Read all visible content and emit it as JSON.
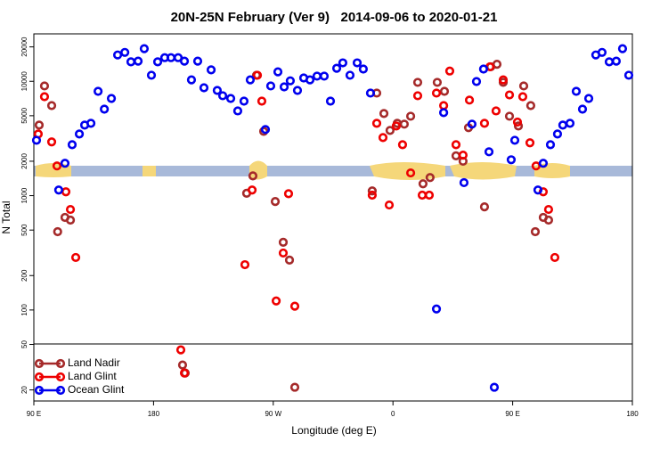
{
  "chart_data": {
    "type": "scatter",
    "title": "20N-25N February (Ver 9)   2014-09-06 to 2020-01-21",
    "xlabel": "Longitude (deg E)",
    "ylabel": "N Total",
    "xlim": [
      90,
      540
    ],
    "xticks": [
      {
        "value": 90,
        "label": "90 E"
      },
      {
        "value": 180,
        "label": "180"
      },
      {
        "value": 270,
        "label": "90 W"
      },
      {
        "value": 360,
        "label": "0"
      },
      {
        "value": 450,
        "label": "90 E"
      },
      {
        "value": 540,
        "label": "180"
      }
    ],
    "ylim": [
      16,
      26000
    ],
    "yscale": "log",
    "yticks": [
      20,
      50,
      100,
      200,
      500,
      1000,
      2000,
      5000,
      10000,
      20000
    ],
    "legend": "lower left",
    "series": [
      {
        "name": "Land Nadir",
        "color": "#a52a2a",
        "x": [
          94,
          98,
          103.4,
          107.9,
          113.4,
          117.5,
          201.8,
          203.8,
          250,
          254.7,
          257.4,
          262.8,
          271.5,
          277.5,
          282.2,
          286.2,
          344.4,
          347.8,
          353.2,
          357.8,
          363.2,
          368.5,
          373.3,
          378.6,
          382.6,
          387.9,
          393.3,
          398.7,
          407.4,
          412.7,
          416.8,
          428.8,
          433.5,
          438.2,
          442.9,
          447.6,
          454.3,
          458.3,
          463.6,
          467,
          473,
          477
        ],
        "values": [
          4140,
          9110,
          6130,
          484,
          645,
          611,
          33,
          28.1,
          1050,
          1490,
          11300,
          3650,
          889,
          391,
          273,
          21.1,
          1100,
          7890,
          5230,
          3720,
          4290,
          4220,
          4950,
          9790,
          1270,
          1440,
          9790,
          8170,
          2230,
          2000,
          3930,
          798,
          13400,
          14100,
          9790,
          4950,
          4070,
          9110,
          6130,
          484,
          645,
          611
        ]
      },
      {
        "name": "Land Glint",
        "color": "#ee0000",
        "x": [
          93.3,
          98,
          103.4,
          107.4,
          114.1,
          117.5,
          121.5,
          200.5,
          203.2,
          248.7,
          254.1,
          258.1,
          261.4,
          272.2,
          277.5,
          281.5,
          286.2,
          344.4,
          347.8,
          352.5,
          357.2,
          362.5,
          367.2,
          373.3,
          378.6,
          382,
          387.3,
          392.7,
          398.1,
          402.7,
          407.4,
          412.7,
          417.5,
          428.8,
          432.9,
          437.5,
          442.9,
          447.6,
          453.6,
          457.6,
          463,
          467.6,
          473,
          477,
          481.7
        ],
        "values": [
          3460,
          7340,
          2950,
          1820,
          1080,
          757,
          288,
          44.8,
          28.1,
          249,
          1120,
          11300,
          6710,
          120,
          315,
          1040,
          108,
          1010,
          4290,
          3220,
          828,
          4070,
          2790,
          1580,
          7480,
          1010,
          1010,
          7890,
          6130,
          12300,
          2790,
          2260,
          6850,
          4290,
          13400,
          5510,
          10300,
          7600,
          4400,
          7340,
          2900,
          1820,
          1080,
          757,
          288
        ]
      },
      {
        "name": "Ocean Glint",
        "color": "#0000ee",
        "x": [
          92,
          113.4,
          108.7,
          118.8,
          124.2,
          128.2,
          132.9,
          138.3,
          143,
          148.3,
          153,
          158.4,
          163,
          168.4,
          173,
          178.4,
          183.1,
          188.4,
          193.1,
          198.5,
          203.2,
          208.5,
          213.2,
          217.9,
          223.3,
          227.9,
          232,
          238,
          243.3,
          248,
          252.7,
          264.1,
          268.1,
          273.5,
          278.2,
          282.8,
          288.2,
          292.9,
          297.6,
          302.9,
          308.3,
          313,
          317.7,
          322.3,
          327.7,
          333.1,
          337.7,
          343.1,
          392.7,
          398.1,
          413.4,
          419.4,
          422.8,
          428.1,
          432.2,
          436.2,
          448.9,
          451.6,
          473,
          469,
          478.4,
          483.7,
          487.7,
          493.1,
          497.8,
          502.5,
          507.2,
          512.5,
          517.2,
          522.6,
          527.9,
          532.6,
          537.3
        ],
        "values": [
          3050,
          1920,
          1120,
          2790,
          3460,
          4140,
          4290,
          8170,
          5710,
          7080,
          17000,
          17900,
          14800,
          15000,
          19300,
          11300,
          14800,
          16100,
          16100,
          16100,
          15000,
          10300,
          15000,
          8780,
          12600,
          8320,
          7480,
          7080,
          5510,
          6710,
          10300,
          3790,
          9110,
          12100,
          8940,
          10100,
          8320,
          10700,
          10300,
          11100,
          11100,
          6710,
          13000,
          14500,
          11300,
          14500,
          12800,
          7890,
          102,
          5320,
          1300,
          4220,
          9950,
          12800,
          2420,
          21.1,
          2060,
          3050,
          1920,
          1120,
          2790,
          3460,
          4140,
          4290,
          8170,
          5710,
          7080,
          17000,
          17900,
          14800,
          15000,
          19300,
          11300
        ]
      }
    ]
  }
}
